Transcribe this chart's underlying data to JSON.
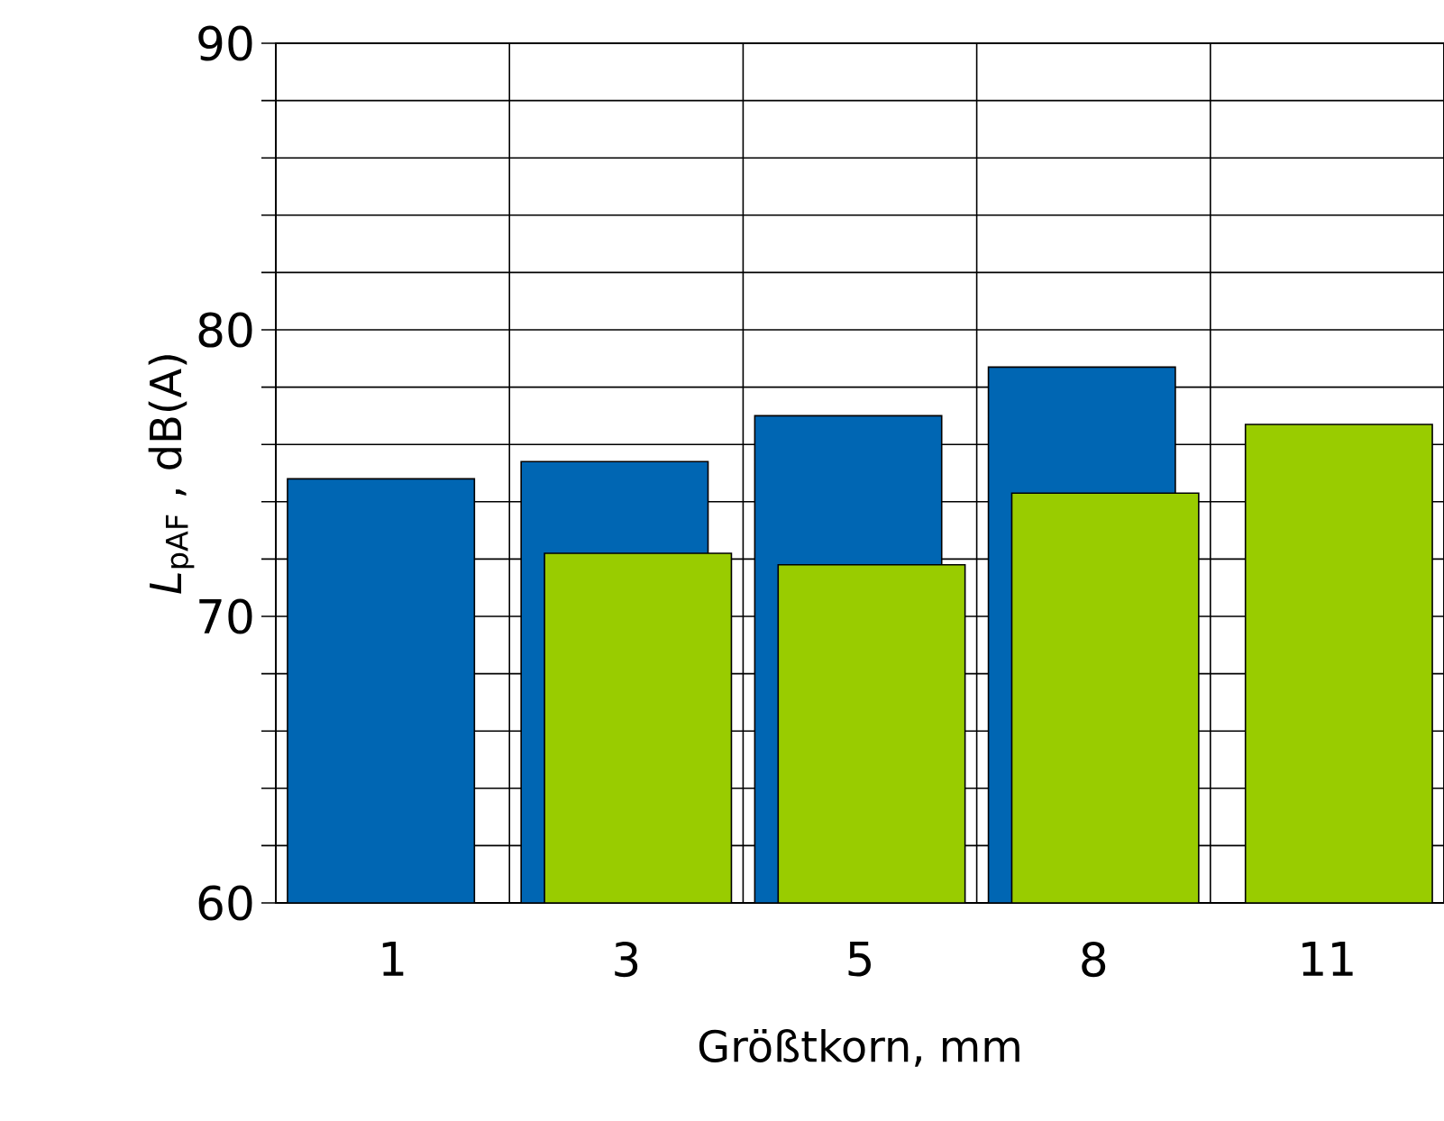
{
  "chart_data": {
    "type": "bar",
    "xlabel": "Größtkorn, mm",
    "ylabel": "*L*$_{pAF}$ , dB(A)",
    "categories": [
      "1",
      "3",
      "5",
      "8",
      "11"
    ],
    "series": [
      {
        "color": "#0066b3",
        "values": [
          74.8,
          75.4,
          77.0,
          78.7,
          null
        ]
      },
      {
        "color": "#99cc00",
        "values": [
          null,
          72.2,
          71.8,
          74.3,
          76.7
        ]
      }
    ],
    "ylim": [
      60,
      90
    ],
    "yticks": [
      60,
      {
        "value": 62,
        "label": null
      },
      {
        "value": 64,
        "label": null
      },
      {
        "value": 66,
        "label": null
      },
      {
        "value": 68,
        "label": null
      },
      70,
      {
        "value": 72,
        "label": null
      },
      {
        "value": 74,
        "label": null
      },
      {
        "value": 76,
        "label": null
      },
      {
        "value": 78,
        "label": null
      },
      80,
      {
        "value": 82,
        "label": null
      },
      {
        "value": 84,
        "label": null
      },
      {
        "value": 86,
        "label": null
      },
      {
        "value": 88,
        "label": null
      },
      90
    ],
    "grid": true
  }
}
